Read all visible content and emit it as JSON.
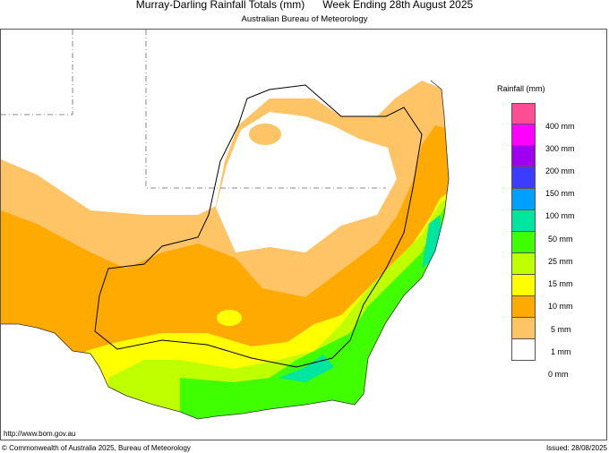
{
  "header": {
    "title": "Murray-Darling Rainfall Totals (mm)      Week Ending 28th August 2025",
    "subtitle": "Australian Bureau of Meteorology"
  },
  "legend": {
    "title": "Rainfall (mm)",
    "swatches": [
      {
        "color": "#ff4d94"
      },
      {
        "color": "#ff00ff"
      },
      {
        "color": "#a000f0"
      },
      {
        "color": "#3c3cff"
      },
      {
        "color": "#00a0ff"
      },
      {
        "color": "#00e6a0"
      },
      {
        "color": "#40ff00"
      },
      {
        "color": "#bfff00"
      },
      {
        "color": "#ffff00"
      },
      {
        "color": "#ffaa00"
      },
      {
        "color": "#ffc466"
      },
      {
        "color": "#ffffff"
      }
    ],
    "labels": [
      "400 mm",
      "300 mm",
      "200 mm",
      "150 mm",
      "100 mm",
      "50 mm",
      "25 mm",
      "15 mm",
      "10 mm",
      "5 mm",
      "1 mm",
      "0 mm"
    ]
  },
  "footer": {
    "url": "http://www.bom.gov.au",
    "copyright": "© Commonwealth of Australia 2025, Bureau of Meteorology",
    "issued": "Issued: 28/08/2025"
  }
}
